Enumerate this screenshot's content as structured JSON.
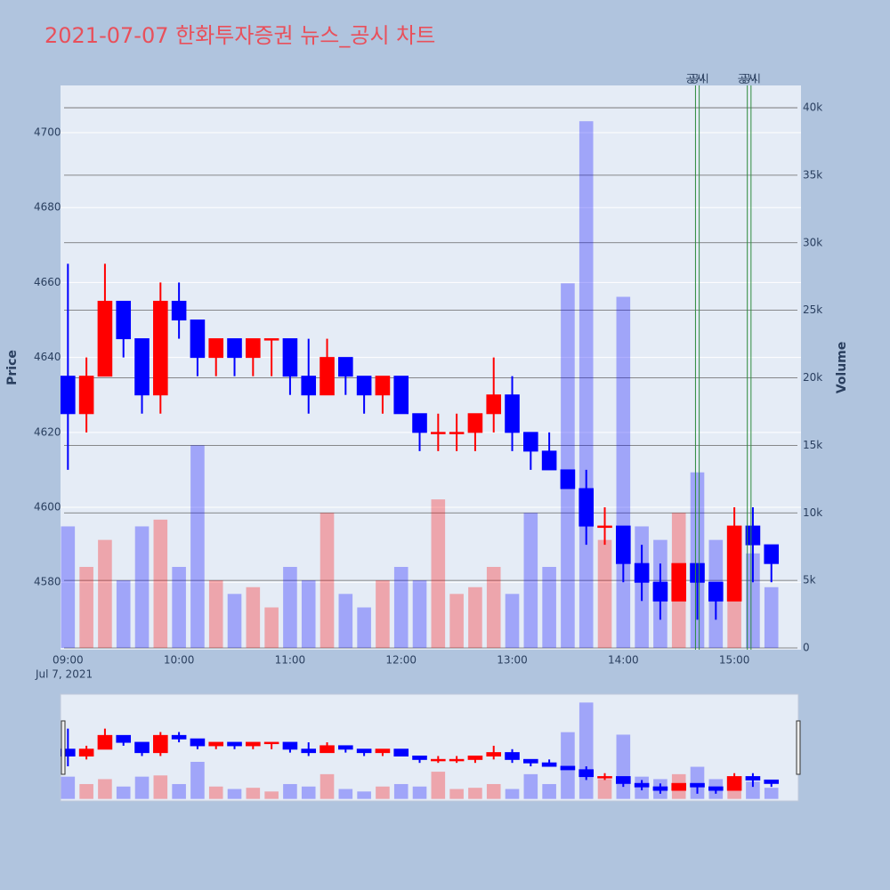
{
  "chart_data": {
    "type": "candlestick",
    "title": "2021-07-07 한화투자증권 뉴스_공시 차트",
    "y_label": "Price",
    "y2_label": "Volume",
    "x": [
      "2021-07-07 09:00",
      "2021-07-07 09:10",
      "2021-07-07 09:20",
      "2021-07-07 09:30",
      "2021-07-07 09:40",
      "2021-07-07 09:50",
      "2021-07-07 10:00",
      "2021-07-07 10:10",
      "2021-07-07 10:20",
      "2021-07-07 10:30",
      "2021-07-07 10:40",
      "2021-07-07 10:50",
      "2021-07-07 11:00",
      "2021-07-07 11:10",
      "2021-07-07 11:20",
      "2021-07-07 11:30",
      "2021-07-07 11:40",
      "2021-07-07 11:50",
      "2021-07-07 12:00",
      "2021-07-07 12:10",
      "2021-07-07 12:20",
      "2021-07-07 12:30",
      "2021-07-07 12:40",
      "2021-07-07 12:50",
      "2021-07-07 13:00",
      "2021-07-07 13:10",
      "2021-07-07 13:20",
      "2021-07-07 13:30",
      "2021-07-07 13:40",
      "2021-07-07 13:50",
      "2021-07-07 14:00",
      "2021-07-07 14:10",
      "2021-07-07 14:20",
      "2021-07-07 14:30",
      "2021-07-07 14:40",
      "2021-07-07 14:50",
      "2021-07-07 15:00",
      "2021-07-07 15:10",
      "2021-07-07 15:20"
    ],
    "open": [
      4635,
      4625,
      4635,
      4655,
      4645,
      4630,
      4655,
      4650,
      4640,
      4645,
      4640,
      4645,
      4645,
      4635,
      4630,
      4640,
      4635,
      4630,
      4635,
      4625,
      4620,
      4620,
      4620,
      4625,
      4630,
      4620,
      4615,
      4610,
      4605,
      4595,
      4595,
      4585,
      4580,
      4575,
      4585,
      4580,
      4575,
      4595,
      4590
    ],
    "high": [
      4665,
      4640,
      4665,
      4655,
      4645,
      4660,
      4660,
      4650,
      4645,
      4645,
      4645,
      4645,
      4645,
      4645,
      4645,
      4640,
      4635,
      4635,
      4635,
      4625,
      4625,
      4625,
      4625,
      4640,
      4635,
      4620,
      4620,
      4610,
      4610,
      4600,
      4595,
      4590,
      4585,
      4585,
      4585,
      4580,
      4600,
      4600,
      4590
    ],
    "low": [
      4610,
      4620,
      4635,
      4640,
      4625,
      4625,
      4645,
      4635,
      4635,
      4635,
      4635,
      4635,
      4630,
      4625,
      4630,
      4630,
      4625,
      4625,
      4625,
      4615,
      4615,
      4615,
      4615,
      4620,
      4615,
      4610,
      4610,
      4605,
      4590,
      4590,
      4580,
      4575,
      4570,
      4575,
      4570,
      4570,
      4575,
      4580,
      4580
    ],
    "close": [
      4625,
      4635,
      4655,
      4645,
      4630,
      4655,
      4650,
      4640,
      4645,
      4640,
      4645,
      4645,
      4635,
      4630,
      4640,
      4635,
      4630,
      4635,
      4625,
      4620,
      4620,
      4620,
      4625,
      4630,
      4620,
      4615,
      4610,
      4605,
      4595,
      4595,
      4585,
      4580,
      4575,
      4585,
      4580,
      4575,
      4595,
      4590,
      4585
    ],
    "volume": [
      9000,
      6000,
      8000,
      5000,
      9000,
      9500,
      6000,
      15000,
      5000,
      4000,
      4500,
      3000,
      6000,
      5000,
      10000,
      4000,
      3000,
      5000,
      6000,
      5000,
      11000,
      4000,
      4500,
      6000,
      4000,
      10000,
      6000,
      27000,
      39000,
      8000,
      26000,
      9000,
      8000,
      10000,
      13000,
      8000,
      8000,
      7000,
      4500
    ],
    "increasing_color": "#ff0000",
    "decreasing_color": "#0000ff",
    "xlim": [
      "2021-07-07 08:56",
      "2021-07-07 15:36"
    ],
    "xticks": [
      {
        "value": "2021-07-07 09:00",
        "label": "09:00"
      },
      {
        "value": "2021-07-07 10:00",
        "label": "10:00"
      },
      {
        "value": "2021-07-07 11:00",
        "label": "11:00"
      },
      {
        "value": "2021-07-07 12:00",
        "label": "12:00"
      },
      {
        "value": "2021-07-07 13:00",
        "label": "13:00"
      },
      {
        "value": "2021-07-07 14:00",
        "label": "14:00"
      },
      {
        "value": "2021-07-07 15:00",
        "label": "15:00"
      }
    ],
    "x_date_label": "Jul 7, 2021",
    "ylim": [
      4562,
      4712.6
    ],
    "yticks": [
      4580,
      4600,
      4620,
      4640,
      4660,
      4680,
      4700
    ],
    "y2lim": [
      -130,
      41650
    ],
    "y2ticks": [
      0,
      {
        "value": 5000,
        "label": "5k"
      },
      {
        "value": 10000,
        "label": "10k"
      },
      {
        "value": 15000,
        "label": "15k"
      },
      {
        "value": 20000,
        "label": "20k"
      },
      {
        "value": 25000,
        "label": "25k"
      },
      {
        "value": 30000,
        "label": "30k"
      },
      {
        "value": 35000,
        "label": "35k"
      },
      {
        "value": 40000,
        "label": "40k"
      }
    ],
    "events": [
      {
        "x": "2021-07-07 14:39",
        "text": "공시"
      },
      {
        "x": "2021-07-07 14:41",
        "text": "공시"
      },
      {
        "x": "2021-07-07 15:07",
        "text": "공시"
      },
      {
        "x": "2021-07-07 15:09",
        "text": "공시"
      }
    ],
    "event_color": "#2e8b3e",
    "range_slider": true
  }
}
